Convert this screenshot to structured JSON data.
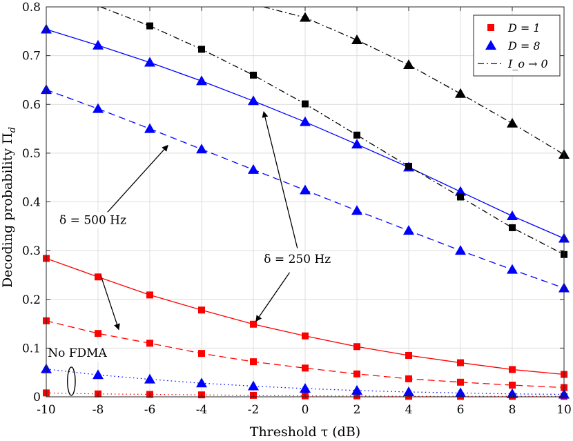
{
  "chart_data": {
    "type": "line",
    "title": "",
    "xlabel": "Threshold τ (dB)",
    "ylabel": "Decoding probability Π",
    "ylabel_sub": "d",
    "xlim": [
      -10,
      10
    ],
    "ylim": [
      0,
      0.8
    ],
    "grid": true,
    "x": [
      -10,
      -8,
      -6,
      -4,
      -2,
      0,
      2,
      4,
      6,
      8,
      10
    ],
    "xticks": [
      "-10",
      "-8",
      "-6",
      "-4",
      "-2",
      "0",
      "2",
      "4",
      "6",
      "8",
      "10"
    ],
    "yticks": [
      "0",
      "0.1",
      "0.2",
      "0.3",
      "0.4",
      "0.5",
      "0.6",
      "0.7",
      "0.8"
    ],
    "legend": {
      "position": "top-right",
      "entries": [
        {
          "label": "D = 1",
          "marker": "square",
          "color": "#ff0000",
          "style": "marker"
        },
        {
          "label": "D = 8",
          "marker": "triangle",
          "color": "#0000ff",
          "style": "marker"
        },
        {
          "label": "I_o → 0",
          "marker": "none",
          "color": "#000000",
          "style": "dashdot"
        }
      ]
    },
    "series": [
      {
        "name": "D=1, δ=250 Hz",
        "color": "#ff0000",
        "marker": "square",
        "dash": "solid",
        "values": [
          0.284,
          0.246,
          0.209,
          0.178,
          0.149,
          0.125,
          0.103,
          0.085,
          0.07,
          0.056,
          0.046
        ]
      },
      {
        "name": "D=1, δ=500 Hz",
        "color": "#ff0000",
        "marker": "square",
        "dash": "dashed",
        "values": [
          0.156,
          0.13,
          0.11,
          0.089,
          0.072,
          0.059,
          0.047,
          0.037,
          0.03,
          0.024,
          0.019
        ]
      },
      {
        "name": "D=1, No FDMA",
        "color": "#ff0000",
        "marker": "square",
        "dash": "dotted",
        "values": [
          0.008,
          0.006,
          0.005,
          0.004,
          0.003,
          0.002,
          0.002,
          0.001,
          0.001,
          0.001,
          0.001
        ]
      },
      {
        "name": "D=8, δ=250 Hz",
        "color": "#0000ff",
        "marker": "triangle",
        "dash": "solid",
        "values": [
          0.754,
          0.721,
          0.686,
          0.648,
          0.607,
          0.564,
          0.518,
          0.471,
          0.421,
          0.371,
          0.325
        ]
      },
      {
        "name": "D=8, δ=500 Hz",
        "color": "#0000ff",
        "marker": "triangle",
        "dash": "dashed",
        "values": [
          0.63,
          0.591,
          0.55,
          0.508,
          0.466,
          0.424,
          0.382,
          0.341,
          0.3,
          0.261,
          0.223
        ]
      },
      {
        "name": "D=8, No FDMA",
        "color": "#0000ff",
        "marker": "triangle",
        "dash": "dotted",
        "values": [
          0.057,
          0.045,
          0.036,
          0.028,
          0.022,
          0.017,
          0.013,
          0.01,
          0.008,
          0.006,
          0.005
        ]
      },
      {
        "name": "D=1, I_o→0",
        "color": "#000000",
        "marker": "square",
        "dash": "dashdot",
        "x": [
          -6,
          -4,
          -2,
          0,
          2,
          4,
          6,
          8,
          10
        ],
        "values": [
          0.761,
          0.713,
          0.66,
          0.601,
          0.537,
          0.473,
          0.41,
          0.347,
          0.292
        ],
        "line_start": [
          -7.9,
          0.8
        ]
      },
      {
        "name": "D=8, I_o→0",
        "color": "#000000",
        "marker": "triangle",
        "dash": "dashdot",
        "x": [
          0,
          2,
          4,
          6,
          8,
          10
        ],
        "values": [
          0.778,
          0.732,
          0.681,
          0.622,
          0.561,
          0.497
        ],
        "line_start": [
          -1.6,
          0.8
        ]
      }
    ],
    "annotations": [
      {
        "label": "δ = 500 Hz",
        "pos": [
          -8.2,
          0.355
        ],
        "arrows": [
          [
            [
              -7.7,
              0.375
            ],
            [
              -5.3,
              0.516
            ]
          ],
          [
            [
              -7.9,
              0.25
            ],
            [
              -7.2,
              0.138
            ]
          ]
        ]
      },
      {
        "label": "δ = 250 Hz",
        "pos": [
          -0.3,
          0.275
        ],
        "arrows": [
          [
            [
              -0.3,
              0.305
            ],
            [
              -1.6,
              0.585
            ]
          ],
          [
            [
              -0.6,
              0.255
            ],
            [
              -1.9,
              0.155
            ]
          ]
        ]
      },
      {
        "label": "No FDMA",
        "pos": [
          -8.8,
          0.082
        ],
        "ellipse": {
          "cx": -9.03,
          "cy": 0.032,
          "rx": 0.15,
          "ry": 0.029
        }
      }
    ]
  }
}
